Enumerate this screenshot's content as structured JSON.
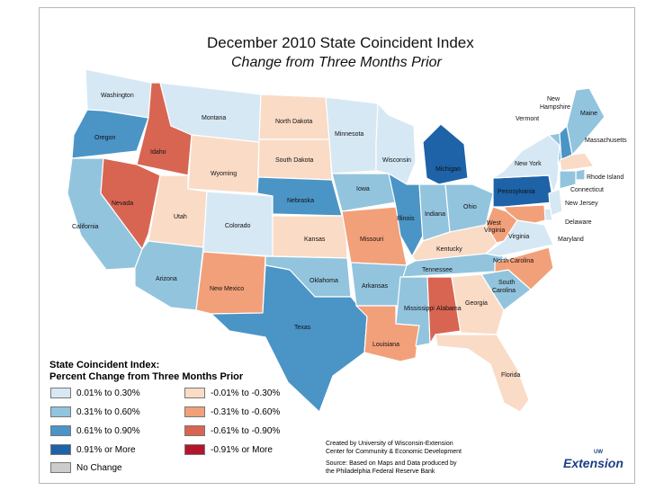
{
  "title": "December 2010 State Coincident Index",
  "subtitle": "Change from Three Months Prior",
  "colors": {
    "pos_low": "#d6e8f4",
    "pos_mid": "#92c4de",
    "pos_high": "#4b94c6",
    "pos_max": "#1e62a8",
    "neg_low": "#fadbc6",
    "neg_mid": "#f2a079",
    "neg_high": "#d86552",
    "neg_max": "#b3152c",
    "none": "#cccccc"
  },
  "legend": {
    "title_line1": "State Coincident Index:",
    "title_line2": "Percent Change from Three Months Prior",
    "items": [
      {
        "label": "0.01% to 0.30%",
        "cls": "pos_low"
      },
      {
        "label": "0.31% to 0.60%",
        "cls": "pos_mid"
      },
      {
        "label": "0.61% to 0.90%",
        "cls": "pos_high"
      },
      {
        "label": "0.91% or More",
        "cls": "pos_max"
      },
      {
        "label": "No Change",
        "cls": "none"
      },
      {
        "label": "-0.01% to -0.30%",
        "cls": "neg_low"
      },
      {
        "label": "-0.31% to -0.60%",
        "cls": "neg_mid"
      },
      {
        "label": "-0.61% to -0.90%",
        "cls": "neg_high"
      },
      {
        "label": "-0.91% or More",
        "cls": "neg_max"
      }
    ]
  },
  "states": [
    {
      "name": "Washington",
      "cls": "pos_low"
    },
    {
      "name": "Oregon",
      "cls": "pos_high"
    },
    {
      "name": "California",
      "cls": "pos_mid"
    },
    {
      "name": "Idaho",
      "cls": "neg_high"
    },
    {
      "name": "Nevada",
      "cls": "neg_high"
    },
    {
      "name": "Montana",
      "cls": "pos_low"
    },
    {
      "name": "Wyoming",
      "cls": "neg_low"
    },
    {
      "name": "Utah",
      "cls": "neg_low"
    },
    {
      "name": "Arizona",
      "cls": "pos_mid"
    },
    {
      "name": "Colorado",
      "cls": "pos_low"
    },
    {
      "name": "New Mexico",
      "cls": "neg_mid"
    },
    {
      "name": "North Dakota",
      "cls": "neg_low"
    },
    {
      "name": "South Dakota",
      "cls": "neg_low"
    },
    {
      "name": "Nebraska",
      "cls": "pos_high"
    },
    {
      "name": "Kansas",
      "cls": "neg_low"
    },
    {
      "name": "Oklahoma",
      "cls": "pos_mid"
    },
    {
      "name": "Texas",
      "cls": "pos_high"
    },
    {
      "name": "Minnesota",
      "cls": "pos_low"
    },
    {
      "name": "Iowa",
      "cls": "pos_mid"
    },
    {
      "name": "Missouri",
      "cls": "neg_mid"
    },
    {
      "name": "Arkansas",
      "cls": "pos_mid"
    },
    {
      "name": "Louisiana",
      "cls": "neg_mid"
    },
    {
      "name": "Wisconsin",
      "cls": "pos_low"
    },
    {
      "name": "Illinois",
      "cls": "pos_high"
    },
    {
      "name": "Michigan",
      "cls": "pos_max"
    },
    {
      "name": "Indiana",
      "cls": "pos_mid"
    },
    {
      "name": "Ohio",
      "cls": "pos_mid"
    },
    {
      "name": "Kentucky",
      "cls": "neg_low"
    },
    {
      "name": "Tennessee",
      "cls": "pos_mid"
    },
    {
      "name": "Mississippi",
      "cls": "pos_mid"
    },
    {
      "name": "Alabama",
      "cls": "neg_high"
    },
    {
      "name": "Georgia",
      "cls": "neg_low"
    },
    {
      "name": "Florida",
      "cls": "neg_low"
    },
    {
      "name": "South Carolina",
      "cls": "pos_mid"
    },
    {
      "name": "North Carolina",
      "cls": "neg_mid"
    },
    {
      "name": "Virginia",
      "cls": "pos_low"
    },
    {
      "name": "West Virginia",
      "cls": "neg_mid"
    },
    {
      "name": "Pennsylvania",
      "cls": "pos_max"
    },
    {
      "name": "New York",
      "cls": "pos_low"
    },
    {
      "name": "Vermont",
      "cls": "pos_mid"
    },
    {
      "name": "New Hampshire",
      "cls": "pos_high"
    },
    {
      "name": "Maine",
      "cls": "pos_mid"
    },
    {
      "name": "Massachusetts",
      "cls": "neg_low"
    },
    {
      "name": "Rhode Island",
      "cls": "pos_mid"
    },
    {
      "name": "Connecticut",
      "cls": "pos_mid"
    },
    {
      "name": "New Jersey",
      "cls": "pos_low"
    },
    {
      "name": "Delaware",
      "cls": "pos_low"
    },
    {
      "name": "Maryland",
      "cls": "neg_mid"
    }
  ],
  "credits": {
    "line1": "Created by University of Wisconsin-Extension",
    "line2": "Center for Community & Economic Development",
    "line3": "Source: Based on Maps and Data produced by",
    "line4": "the Philadelphia Federal Reserve Bank"
  },
  "logo": {
    "sup": "UW",
    "text": "Extension"
  }
}
